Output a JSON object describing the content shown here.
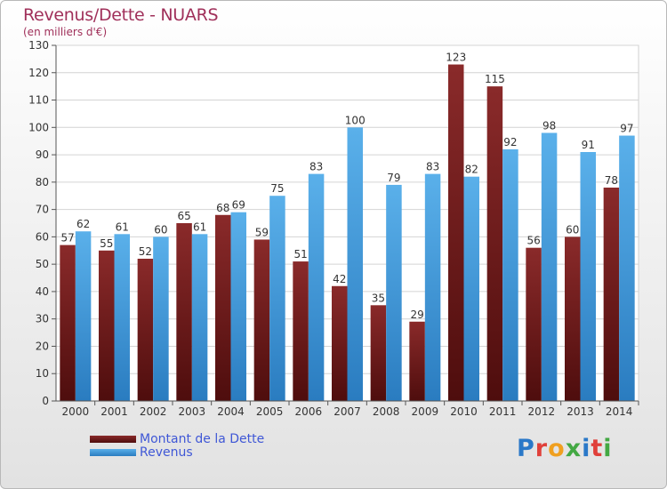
{
  "title": "Revenus/Dette - NUARS",
  "subtitle": "(en milliers d'€)",
  "legend": {
    "dette_label": "Montant de la Dette",
    "revenus_label": "Revenus"
  },
  "logo": {
    "text": "Proxiti",
    "letter_colors": [
      "#2a78c8",
      "#e0403a",
      "#f0a020",
      "#43a843",
      "#2a78c8",
      "#e0403a",
      "#43a843"
    ]
  },
  "colors": {
    "dette_top": "#8a2a2a",
    "dette_bottom": "#4e0d0d",
    "revenus_top": "#5ab0ea",
    "revenus_bottom": "#2a7cc0",
    "title": "#a0305a",
    "legend_text": "#3f57d6"
  },
  "chart_data": {
    "type": "bar",
    "title": "Revenus/Dette - NUARS",
    "subtitle": "(en milliers d'€)",
    "xlabel": "",
    "ylabel": "",
    "ylim": [
      0,
      130
    ],
    "yticks": [
      0,
      10,
      20,
      30,
      40,
      50,
      60,
      70,
      80,
      90,
      100,
      110,
      120,
      130
    ],
    "grid": true,
    "legend_position": "bottom-left",
    "categories": [
      "2000",
      "2001",
      "2002",
      "2003",
      "2004",
      "2005",
      "2006",
      "2007",
      "2008",
      "2009",
      "2010",
      "2011",
      "2012",
      "2013",
      "2014"
    ],
    "series": [
      {
        "name": "Montant de la Dette",
        "values": [
          57,
          55,
          52,
          65,
          68,
          59,
          51,
          42,
          35,
          29,
          123,
          115,
          56,
          60,
          78
        ]
      },
      {
        "name": "Revenus",
        "values": [
          62,
          61,
          60,
          61,
          69,
          75,
          83,
          100,
          79,
          83,
          82,
          92,
          98,
          91,
          97
        ]
      }
    ]
  }
}
